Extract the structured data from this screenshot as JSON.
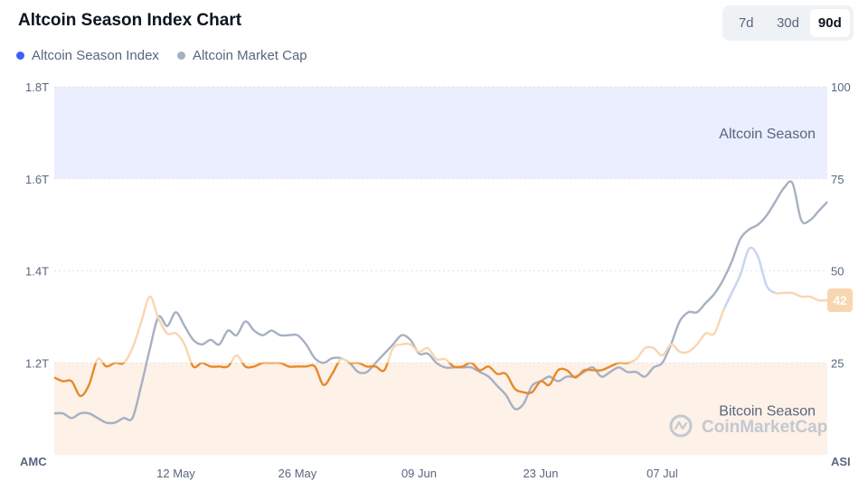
{
  "header": {
    "title": "Altcoin Season Index Chart",
    "ranges": [
      {
        "label": "7d",
        "active": false
      },
      {
        "label": "30d",
        "active": false
      },
      {
        "label": "90d",
        "active": true
      }
    ]
  },
  "legend": [
    {
      "label": "Altcoin Season Index",
      "color": "#3861fb"
    },
    {
      "label": "Altcoin Market Cap",
      "color": "#a6b0c3"
    }
  ],
  "watermark": "CoinMarketCap",
  "chart_data": {
    "type": "line",
    "left_axis": {
      "label": "AMC",
      "ticks": [
        "1.8T",
        "1.6T",
        "1.4T",
        "1.2T"
      ],
      "tick_values": [
        1.8,
        1.6,
        1.4,
        1.2
      ],
      "range": [
        1.0,
        1.8
      ]
    },
    "right_axis": {
      "label": "ASI",
      "ticks": [
        "100",
        "75",
        "50",
        "25"
      ],
      "tick_values": [
        100,
        75,
        50,
        25
      ],
      "range": [
        0,
        100
      ]
    },
    "x_ticks": [
      "12 May",
      "26 May",
      "09 Jun",
      "23 Jun",
      "07 Jul"
    ],
    "x_tick_index": [
      14,
      28,
      42,
      56,
      70
    ],
    "x_count": 90,
    "zones": [
      {
        "label": "Altcoin Season",
        "from": 75,
        "to": 100,
        "color": "#eaeefe"
      },
      {
        "label": "Bitcoin Season",
        "from": 0,
        "to": 25,
        "color": "#fdf1e8"
      }
    ],
    "series": [
      {
        "name": "Altcoin Season Index",
        "axis": "right",
        "latest_label": "42",
        "values": [
          21,
          20,
          20,
          16,
          19,
          26,
          24,
          25,
          25,
          29,
          36,
          43,
          37,
          33,
          33,
          30,
          24,
          25,
          24,
          24,
          24,
          27,
          24,
          24,
          25,
          25,
          25,
          24,
          24,
          24,
          24,
          19,
          22,
          26,
          25,
          25,
          24,
          24,
          23,
          29,
          30,
          30,
          28,
          29,
          26,
          26,
          24,
          24,
          25,
          23,
          24,
          22,
          22,
          18,
          17,
          17,
          20,
          19,
          23,
          23,
          21,
          23,
          23,
          23,
          24,
          25,
          25,
          26,
          29,
          29,
          27,
          30,
          28,
          28,
          30,
          33,
          33,
          39,
          44,
          49,
          56,
          54,
          46,
          44,
          44,
          44,
          43,
          43,
          42,
          42
        ]
      },
      {
        "name": "Altcoin Market Cap",
        "axis": "left",
        "values": [
          1.09,
          1.09,
          1.08,
          1.09,
          1.09,
          1.08,
          1.07,
          1.07,
          1.08,
          1.08,
          1.15,
          1.23,
          1.3,
          1.28,
          1.31,
          1.28,
          1.25,
          1.24,
          1.25,
          1.24,
          1.27,
          1.26,
          1.29,
          1.27,
          1.26,
          1.27,
          1.26,
          1.26,
          1.26,
          1.24,
          1.21,
          1.2,
          1.21,
          1.21,
          1.2,
          1.18,
          1.18,
          1.2,
          1.22,
          1.24,
          1.26,
          1.25,
          1.22,
          1.22,
          1.2,
          1.19,
          1.19,
          1.19,
          1.19,
          1.18,
          1.17,
          1.15,
          1.13,
          1.1,
          1.11,
          1.15,
          1.16,
          1.17,
          1.16,
          1.17,
          1.17,
          1.18,
          1.19,
          1.17,
          1.18,
          1.19,
          1.18,
          1.18,
          1.17,
          1.19,
          1.2,
          1.24,
          1.29,
          1.31,
          1.31,
          1.33,
          1.35,
          1.38,
          1.42,
          1.47,
          1.49,
          1.5,
          1.52,
          1.55,
          1.58,
          1.59,
          1.51,
          1.51,
          1.53,
          1.55
        ]
      }
    ]
  }
}
